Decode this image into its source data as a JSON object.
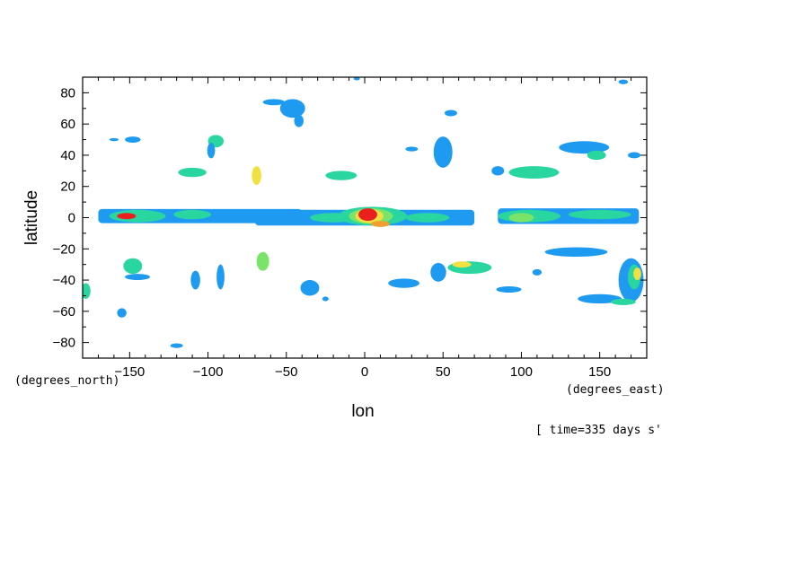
{
  "chart_data": {
    "type": "heatmap",
    "title": "",
    "xlabel": "lon",
    "ylabel": "latitude",
    "x_units": "(degrees_east)",
    "y_units": "(degrees_north)",
    "time_label": "[ time=335 days s'",
    "xlim": [
      -180,
      180
    ],
    "ylim": [
      -90,
      90
    ],
    "x_ticks": [
      -150,
      -100,
      -50,
      0,
      50,
      100,
      150
    ],
    "y_ticks": [
      -80,
      -60,
      -40,
      -20,
      0,
      20,
      40,
      60,
      80
    ],
    "x_tick_labels": [
      "−150",
      "−100",
      "−50",
      "0",
      "50",
      "100",
      "150"
    ],
    "y_tick_labels": [
      "−80",
      "−60",
      "−40",
      "−20",
      "0",
      "20",
      "40",
      "60",
      "80"
    ],
    "grid": false,
    "level_colors": [
      "#1e9bf0",
      "#29d6a0",
      "#79e36a",
      "#f0e040",
      "#f0a030",
      "#e82020"
    ],
    "features": [
      {
        "kind": "band",
        "lon0": -170,
        "lon1": -40,
        "lat_c": 1,
        "h": 9,
        "level": 0
      },
      {
        "kind": "band",
        "lon0": -70,
        "lon1": 70,
        "lat_c": 0,
        "h": 10,
        "level": 0
      },
      {
        "kind": "band",
        "lon0": 85,
        "lon1": 175,
        "lat_c": 1,
        "h": 10,
        "level": 0
      },
      {
        "kind": "blob",
        "lon": -145,
        "lat": 1,
        "rx": 18,
        "ry": 4,
        "level": 1
      },
      {
        "kind": "blob",
        "lon": -152,
        "lat": 1,
        "rx": 6,
        "ry": 2,
        "level": 5
      },
      {
        "kind": "blob",
        "lon": -110,
        "lat": 2,
        "rx": 12,
        "ry": 3,
        "level": 1
      },
      {
        "kind": "blob",
        "lon": -20,
        "lat": 0,
        "rx": 15,
        "ry": 3,
        "level": 1
      },
      {
        "kind": "blob",
        "lon": 5,
        "lat": 1,
        "rx": 22,
        "ry": 6,
        "level": 1
      },
      {
        "kind": "blob",
        "lon": 4,
        "lat": 1,
        "rx": 14,
        "ry": 5,
        "level": 2
      },
      {
        "kind": "blob",
        "lon": 3,
        "lat": 1,
        "rx": 9,
        "ry": 4.5,
        "level": 3
      },
      {
        "kind": "blob",
        "lon": 2,
        "lat": 2,
        "rx": 6,
        "ry": 4,
        "level": 5
      },
      {
        "kind": "blob",
        "lon": 10,
        "lat": -4,
        "rx": 6,
        "ry": 2,
        "level": 4
      },
      {
        "kind": "blob",
        "lon": 40,
        "lat": 0,
        "rx": 14,
        "ry": 3,
        "level": 1
      },
      {
        "kind": "blob",
        "lon": 105,
        "lat": 1,
        "rx": 20,
        "ry": 4,
        "level": 1
      },
      {
        "kind": "blob",
        "lon": 100,
        "lat": 0,
        "rx": 8,
        "ry": 3,
        "level": 2
      },
      {
        "kind": "blob",
        "lon": 150,
        "lat": 2,
        "rx": 20,
        "ry": 3,
        "level": 1
      },
      {
        "kind": "blob",
        "lon": -46,
        "lat": 70,
        "rx": 8,
        "ry": 6,
        "level": 0
      },
      {
        "kind": "blob",
        "lon": -58,
        "lat": 74,
        "rx": 7,
        "ry": 2,
        "level": 0
      },
      {
        "kind": "blob",
        "lon": -42,
        "lat": 62,
        "rx": 3,
        "ry": 4,
        "level": 0
      },
      {
        "kind": "blob",
        "lon": -95,
        "lat": 49,
        "rx": 5,
        "ry": 4,
        "level": 1
      },
      {
        "kind": "blob",
        "lon": -98,
        "lat": 43,
        "rx": 2.5,
        "ry": 5,
        "level": 0
      },
      {
        "kind": "blob",
        "lon": -110,
        "lat": 29,
        "rx": 9,
        "ry": 3,
        "level": 1
      },
      {
        "kind": "blob",
        "lon": -69,
        "lat": 27,
        "rx": 3,
        "ry": 6,
        "level": 3
      },
      {
        "kind": "blob",
        "lon": -148,
        "lat": 50,
        "rx": 5,
        "ry": 2,
        "level": 0
      },
      {
        "kind": "blob",
        "lon": -15,
        "lat": 27,
        "rx": 10,
        "ry": 3,
        "level": 1
      },
      {
        "kind": "blob",
        "lon": 50,
        "lat": 42,
        "rx": 6,
        "ry": 10,
        "level": 0
      },
      {
        "kind": "blob",
        "lon": 55,
        "lat": 67,
        "rx": 4,
        "ry": 2,
        "level": 0
      },
      {
        "kind": "blob",
        "lon": 85,
        "lat": 30,
        "rx": 4,
        "ry": 3,
        "level": 0
      },
      {
        "kind": "blob",
        "lon": 108,
        "lat": 29,
        "rx": 16,
        "ry": 4,
        "level": 1
      },
      {
        "kind": "blob",
        "lon": 140,
        "lat": 45,
        "rx": 16,
        "ry": 4,
        "level": 0
      },
      {
        "kind": "blob",
        "lon": 148,
        "lat": 40,
        "rx": 6,
        "ry": 3,
        "level": 1
      },
      {
        "kind": "blob",
        "lon": 172,
        "lat": 40,
        "rx": 4,
        "ry": 2,
        "level": 0
      },
      {
        "kind": "blob",
        "lon": 30,
        "lat": 44,
        "rx": 4,
        "ry": 1.5,
        "level": 0
      },
      {
        "kind": "blob",
        "lon": -148,
        "lat": -31,
        "rx": 6,
        "ry": 5,
        "level": 1
      },
      {
        "kind": "blob",
        "lon": -145,
        "lat": -38,
        "rx": 8,
        "ry": 2,
        "level": 0
      },
      {
        "kind": "blob",
        "lon": -108,
        "lat": -40,
        "rx": 3,
        "ry": 6,
        "level": 0
      },
      {
        "kind": "blob",
        "lon": -92,
        "lat": -38,
        "rx": 2.5,
        "ry": 8,
        "level": 0
      },
      {
        "kind": "blob",
        "lon": -65,
        "lat": -28,
        "rx": 4,
        "ry": 6,
        "level": 2
      },
      {
        "kind": "blob",
        "lon": -35,
        "lat": -45,
        "rx": 6,
        "ry": 5,
        "level": 0
      },
      {
        "kind": "blob",
        "lon": -25,
        "lat": -52,
        "rx": 2,
        "ry": 1.5,
        "level": 0
      },
      {
        "kind": "blob",
        "lon": 25,
        "lat": -42,
        "rx": 10,
        "ry": 3,
        "level": 0
      },
      {
        "kind": "blob",
        "lon": 47,
        "lat": -35,
        "rx": 5,
        "ry": 6,
        "level": 0
      },
      {
        "kind": "blob",
        "lon": 67,
        "lat": -32,
        "rx": 14,
        "ry": 4,
        "level": 1
      },
      {
        "kind": "blob",
        "lon": 62,
        "lat": -30,
        "rx": 6,
        "ry": 2,
        "level": 3
      },
      {
        "kind": "blob",
        "lon": 92,
        "lat": -46,
        "rx": 8,
        "ry": 2,
        "level": 0
      },
      {
        "kind": "blob",
        "lon": 110,
        "lat": -35,
        "rx": 3,
        "ry": 2,
        "level": 0
      },
      {
        "kind": "blob",
        "lon": 135,
        "lat": -22,
        "rx": 20,
        "ry": 3,
        "level": 0
      },
      {
        "kind": "blob",
        "lon": 170,
        "lat": -40,
        "rx": 8,
        "ry": 14,
        "level": 0
      },
      {
        "kind": "blob",
        "lon": 172,
        "lat": -38,
        "rx": 4,
        "ry": 8,
        "level": 1
      },
      {
        "kind": "blob",
        "lon": 174,
        "lat": -36,
        "rx": 2.5,
        "ry": 4,
        "level": 3
      },
      {
        "kind": "blob",
        "lon": 150,
        "lat": -52,
        "rx": 14,
        "ry": 3,
        "level": 0
      },
      {
        "kind": "blob",
        "lon": 165,
        "lat": -54,
        "rx": 8,
        "ry": 2,
        "level": 1
      },
      {
        "kind": "blob",
        "lon": -178,
        "lat": -47,
        "rx": 3,
        "ry": 5,
        "level": 1
      },
      {
        "kind": "blob",
        "lon": -155,
        "lat": -61,
        "rx": 3,
        "ry": 3,
        "level": 0
      },
      {
        "kind": "blob",
        "lon": -120,
        "lat": -82,
        "rx": 4,
        "ry": 1.5,
        "level": 0
      },
      {
        "kind": "blob",
        "lon": 165,
        "lat": 87,
        "rx": 3,
        "ry": 1.5,
        "level": 0
      },
      {
        "kind": "blob",
        "lon": -160,
        "lat": 50,
        "rx": 3,
        "ry": 1,
        "level": 0
      },
      {
        "kind": "blob",
        "lon": -5,
        "lat": 89,
        "rx": 2,
        "ry": 1,
        "level": 0
      }
    ]
  }
}
